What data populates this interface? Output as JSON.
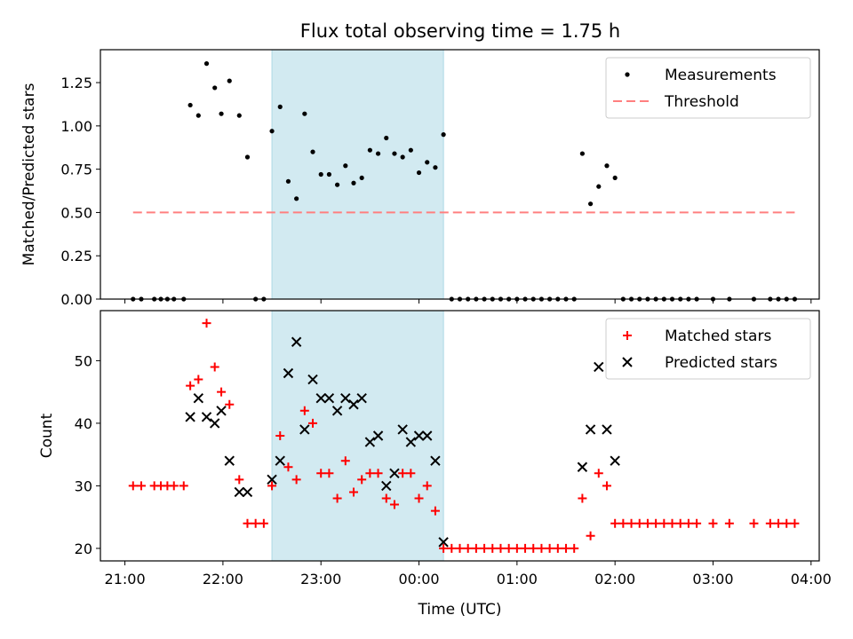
{
  "figure_title": "Flux total observing time = 1.75 h",
  "highlight_color": "#add8e6",
  "shaded_window": {
    "start": "22:30",
    "end": "00:15"
  },
  "x_axis": {
    "label": "Time (UTC)",
    "min": "20:45",
    "max": "04:05",
    "ticks": [
      "21:00",
      "22:00",
      "23:00",
      "00:00",
      "01:00",
      "02:00",
      "03:00",
      "04:00"
    ]
  },
  "chart_data": [
    {
      "type": "scatter",
      "title": "Flux total observing time = 1.75 h",
      "ylabel": "Matched/Predicted stars",
      "ylim": [
        0,
        1.44
      ],
      "yticks": [
        "0.00",
        "0.25",
        "0.50",
        "0.75",
        "1.00",
        "1.25"
      ],
      "legend_position": "top-right",
      "series": [
        {
          "name": "Measurements",
          "marker": "dot",
          "color": "#000000",
          "points": [
            [
              "21:05",
              0
            ],
            [
              "21:10",
              0
            ],
            [
              "21:18",
              0
            ],
            [
              "21:22",
              0
            ],
            [
              "21:26",
              0
            ],
            [
              "21:30",
              0
            ],
            [
              "21:36",
              0
            ],
            [
              "21:40",
              1.12
            ],
            [
              "21:45",
              1.06
            ],
            [
              "21:50",
              1.36
            ],
            [
              "21:55",
              1.22
            ],
            [
              "21:59",
              1.07
            ],
            [
              "22:04",
              1.26
            ],
            [
              "22:10",
              1.06
            ],
            [
              "22:15",
              0.82
            ],
            [
              "22:20",
              0
            ],
            [
              "22:25",
              0
            ],
            [
              "22:30",
              0.97
            ],
            [
              "22:35",
              1.11
            ],
            [
              "22:40",
              0.68
            ],
            [
              "22:45",
              0.58
            ],
            [
              "22:50",
              1.07
            ],
            [
              "22:55",
              0.85
            ],
            [
              "23:00",
              0.72
            ],
            [
              "23:05",
              0.72
            ],
            [
              "23:10",
              0.66
            ],
            [
              "23:15",
              0.77
            ],
            [
              "23:20",
              0.67
            ],
            [
              "23:25",
              0.7
            ],
            [
              "23:30",
              0.86
            ],
            [
              "23:35",
              0.84
            ],
            [
              "23:40",
              0.93
            ],
            [
              "23:45",
              0.84
            ],
            [
              "23:50",
              0.82
            ],
            [
              "23:55",
              0.86
            ],
            [
              "00:00",
              0.73
            ],
            [
              "00:05",
              0.79
            ],
            [
              "00:10",
              0.76
            ],
            [
              "00:15",
              0.95
            ],
            [
              "00:20",
              0
            ],
            [
              "00:25",
              0
            ],
            [
              "00:30",
              0
            ],
            [
              "00:35",
              0
            ],
            [
              "00:40",
              0
            ],
            [
              "00:45",
              0
            ],
            [
              "00:50",
              0
            ],
            [
              "00:55",
              0
            ],
            [
              "01:00",
              0
            ],
            [
              "01:05",
              0
            ],
            [
              "01:10",
              0
            ],
            [
              "01:15",
              0
            ],
            [
              "01:20",
              0
            ],
            [
              "01:25",
              0
            ],
            [
              "01:30",
              0
            ],
            [
              "01:35",
              0
            ],
            [
              "01:40",
              0.84
            ],
            [
              "01:45",
              0.55
            ],
            [
              "01:50",
              0.65
            ],
            [
              "01:55",
              0.77
            ],
            [
              "02:00",
              0.7
            ],
            [
              "02:05",
              0
            ],
            [
              "02:10",
              0
            ],
            [
              "02:15",
              0
            ],
            [
              "02:20",
              0
            ],
            [
              "02:25",
              0
            ],
            [
              "02:30",
              0
            ],
            [
              "02:35",
              0
            ],
            [
              "02:40",
              0
            ],
            [
              "02:45",
              0
            ],
            [
              "02:50",
              0
            ],
            [
              "03:00",
              0
            ],
            [
              "03:10",
              0
            ],
            [
              "03:25",
              0
            ],
            [
              "03:35",
              0
            ],
            [
              "03:40",
              0
            ],
            [
              "03:45",
              0
            ],
            [
              "03:50",
              0
            ]
          ]
        },
        {
          "name": "Threshold",
          "marker": "dashed-line",
          "color": "#ff7f7f",
          "points": [
            [
              "21:05",
              0.5
            ],
            [
              "03:50",
              0.5
            ]
          ]
        }
      ]
    },
    {
      "type": "scatter",
      "ylabel": "Count",
      "ylim": [
        18,
        58
      ],
      "yticks": [
        "20",
        "30",
        "40",
        "50"
      ],
      "legend_position": "top-right",
      "series": [
        {
          "name": "Matched stars",
          "marker": "plus",
          "color": "#ff0000",
          "points": [
            [
              "21:05",
              30
            ],
            [
              "21:10",
              30
            ],
            [
              "21:18",
              30
            ],
            [
              "21:22",
              30
            ],
            [
              "21:26",
              30
            ],
            [
              "21:30",
              30
            ],
            [
              "21:36",
              30
            ],
            [
              "21:40",
              46
            ],
            [
              "21:45",
              47
            ],
            [
              "21:50",
              56
            ],
            [
              "21:55",
              49
            ],
            [
              "21:59",
              45
            ],
            [
              "22:04",
              43
            ],
            [
              "22:10",
              31
            ],
            [
              "22:15",
              24
            ],
            [
              "22:20",
              24
            ],
            [
              "22:25",
              24
            ],
            [
              "22:30",
              30
            ],
            [
              "22:35",
              38
            ],
            [
              "22:40",
              33
            ],
            [
              "22:45",
              31
            ],
            [
              "22:50",
              42
            ],
            [
              "22:55",
              40
            ],
            [
              "23:00",
              32
            ],
            [
              "23:05",
              32
            ],
            [
              "23:10",
              28
            ],
            [
              "23:15",
              34
            ],
            [
              "23:20",
              29
            ],
            [
              "23:25",
              31
            ],
            [
              "23:30",
              32
            ],
            [
              "23:35",
              32
            ],
            [
              "23:40",
              28
            ],
            [
              "23:45",
              27
            ],
            [
              "23:50",
              32
            ],
            [
              "23:55",
              32
            ],
            [
              "00:00",
              28
            ],
            [
              "00:05",
              30
            ],
            [
              "00:10",
              26
            ],
            [
              "00:15",
              20
            ],
            [
              "00:20",
              20
            ],
            [
              "00:25",
              20
            ],
            [
              "00:30",
              20
            ],
            [
              "00:35",
              20
            ],
            [
              "00:40",
              20
            ],
            [
              "00:45",
              20
            ],
            [
              "00:50",
              20
            ],
            [
              "00:55",
              20
            ],
            [
              "01:00",
              20
            ],
            [
              "01:05",
              20
            ],
            [
              "01:10",
              20
            ],
            [
              "01:15",
              20
            ],
            [
              "01:20",
              20
            ],
            [
              "01:25",
              20
            ],
            [
              "01:30",
              20
            ],
            [
              "01:35",
              20
            ],
            [
              "01:40",
              28
            ],
            [
              "01:45",
              22
            ],
            [
              "01:50",
              32
            ],
            [
              "01:55",
              30
            ],
            [
              "02:00",
              24
            ],
            [
              "02:05",
              24
            ],
            [
              "02:10",
              24
            ],
            [
              "02:15",
              24
            ],
            [
              "02:20",
              24
            ],
            [
              "02:25",
              24
            ],
            [
              "02:30",
              24
            ],
            [
              "02:35",
              24
            ],
            [
              "02:40",
              24
            ],
            [
              "02:45",
              24
            ],
            [
              "02:50",
              24
            ],
            [
              "03:00",
              24
            ],
            [
              "03:10",
              24
            ],
            [
              "03:25",
              24
            ],
            [
              "03:35",
              24
            ],
            [
              "03:40",
              24
            ],
            [
              "03:45",
              24
            ],
            [
              "03:50",
              24
            ]
          ]
        },
        {
          "name": "Predicted stars",
          "marker": "x",
          "color": "#000000",
          "points": [
            [
              "21:40",
              41
            ],
            [
              "21:45",
              44
            ],
            [
              "21:50",
              41
            ],
            [
              "21:55",
              40
            ],
            [
              "21:59",
              42
            ],
            [
              "22:04",
              34
            ],
            [
              "22:10",
              29
            ],
            [
              "22:15",
              29
            ],
            [
              "22:30",
              31
            ],
            [
              "22:35",
              34
            ],
            [
              "22:40",
              48
            ],
            [
              "22:45",
              53
            ],
            [
              "22:50",
              39
            ],
            [
              "22:55",
              47
            ],
            [
              "23:00",
              44
            ],
            [
              "23:05",
              44
            ],
            [
              "23:10",
              42
            ],
            [
              "23:15",
              44
            ],
            [
              "23:20",
              43
            ],
            [
              "23:25",
              44
            ],
            [
              "23:30",
              37
            ],
            [
              "23:35",
              38
            ],
            [
              "23:40",
              30
            ],
            [
              "23:45",
              32
            ],
            [
              "23:50",
              39
            ],
            [
              "23:55",
              37
            ],
            [
              "00:00",
              38
            ],
            [
              "00:05",
              38
            ],
            [
              "00:10",
              34
            ],
            [
              "00:15",
              21
            ],
            [
              "01:40",
              33
            ],
            [
              "01:45",
              39
            ],
            [
              "01:50",
              49
            ],
            [
              "01:55",
              39
            ],
            [
              "02:00",
              34
            ]
          ]
        }
      ]
    }
  ]
}
